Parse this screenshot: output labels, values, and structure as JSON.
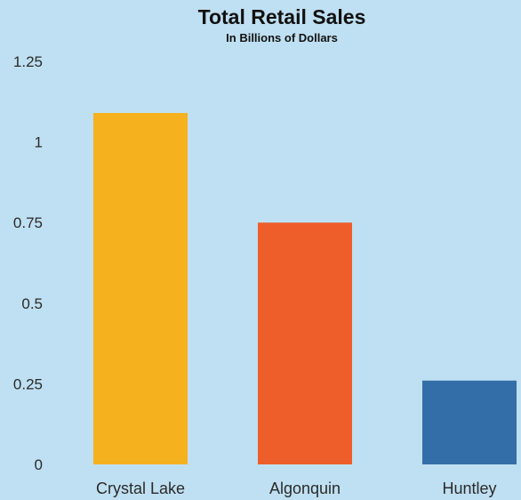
{
  "chart_data": {
    "type": "bar",
    "title": "Total Retail Sales",
    "subtitle": "In Billions of Dollars",
    "categories": [
      "Crystal Lake",
      "Algonquin",
      "Huntley"
    ],
    "values": [
      1.09,
      0.75,
      0.26
    ],
    "ylim": [
      0,
      1.25
    ],
    "yticks": [
      "0",
      "0.25",
      "0.5",
      "0.75",
      "1",
      "1.25"
    ],
    "ytick_values": [
      0,
      0.25,
      0.5,
      0.75,
      1,
      1.25
    ],
    "colors": [
      "#f6b11f",
      "#ee5e2b",
      "#336ea9"
    ],
    "background": "#bfe0f2",
    "grid": false,
    "legend": "none"
  }
}
